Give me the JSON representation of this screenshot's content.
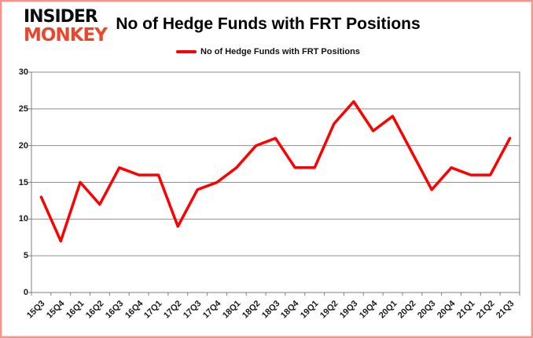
{
  "logo": {
    "line1": "INSIDER",
    "line2": "MONKEY"
  },
  "header": {
    "title": "No of Hedge Funds with FRT Positions"
  },
  "legend": {
    "label": "No of Hedge Funds with FRT Positions"
  },
  "colors": {
    "brand_red": "#e9472d",
    "line": "#ff0000",
    "grid": "#8e8e8e",
    "axis": "#7f7f7f",
    "frame_border": "#f0968c",
    "tick_text": "#1a1a1a"
  },
  "chart_data": {
    "type": "line",
    "title": "No of Hedge Funds with FRT Positions",
    "series_name": "No of Hedge Funds with FRT Positions",
    "categories": [
      "15Q3",
      "15Q4",
      "16Q1",
      "16Q2",
      "16Q3",
      "16Q4",
      "17Q1",
      "17Q2",
      "17Q3",
      "17Q4",
      "18Q1",
      "18Q2",
      "18Q3",
      "18Q4",
      "19Q1",
      "19Q2",
      "19Q3",
      "19Q4",
      "20Q1",
      "20Q2",
      "20Q3",
      "20Q4",
      "21Q1",
      "21Q2",
      "21Q3"
    ],
    "values": [
      13,
      7,
      15,
      12,
      17,
      16,
      16,
      9,
      14,
      15,
      17,
      20,
      21,
      17,
      17,
      23,
      26,
      22,
      24,
      19,
      14,
      17,
      16,
      16,
      21
    ],
    "xlabel": "",
    "ylabel": "",
    "ylim": [
      0,
      30
    ],
    "yticks": [
      0,
      5,
      10,
      15,
      20,
      25,
      30
    ],
    "grid": true,
    "legend_position": "top-center",
    "line_width": 3.5
  }
}
